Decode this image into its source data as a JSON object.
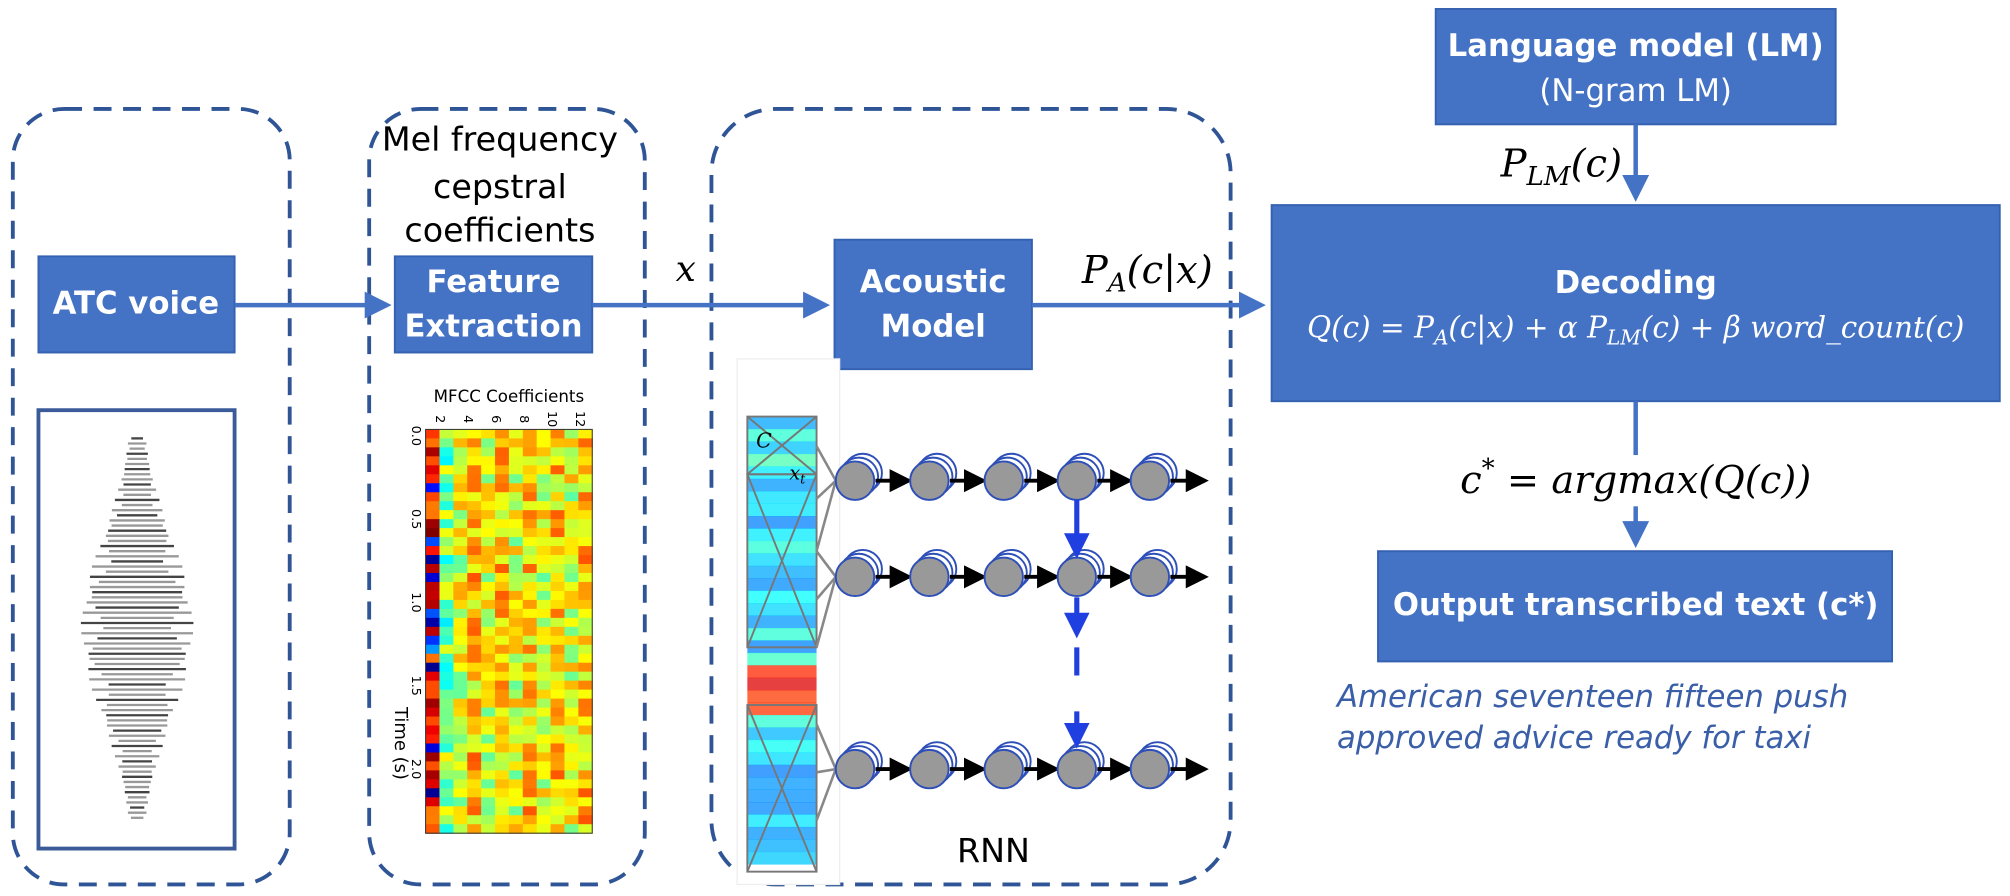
{
  "voice": {
    "label": "ATC voice"
  },
  "feature": {
    "caption": [
      "Mel frequency",
      "cepstral",
      "coefficients"
    ],
    "label": [
      "Feature",
      "Extraction"
    ],
    "plot": {
      "title": "MFCC Coefficients",
      "y_label": "Time (s)",
      "x_ticks": [
        "2",
        "4",
        "6",
        "8",
        "10",
        "12"
      ],
      "y_ticks": [
        "0.0",
        "0.5",
        "1.0",
        "1.5",
        "2.0"
      ]
    }
  },
  "x_label": "x",
  "acoustic": {
    "label": [
      "Acoustic",
      "Model"
    ],
    "output": [
      {
        "t": "P"
      },
      {
        "s": "A"
      },
      {
        "t": "(c|x)"
      }
    ],
    "rnn_label": "RNN",
    "rnn_context": "C",
    "rnn_input": [
      {
        "t": "x"
      },
      {
        "s": "t"
      }
    ]
  },
  "lm": {
    "title": "Language model (LM)",
    "subtitle": "(N-gram LM)",
    "output": [
      {
        "t": "P"
      },
      {
        "s": "LM"
      },
      {
        "t": "(c)"
      }
    ]
  },
  "decoding": {
    "title": "Decoding",
    "formula": [
      {
        "t": "Q(c) = P"
      },
      {
        "s": "A"
      },
      {
        "t": "(c|x) + α P"
      },
      {
        "s": "LM"
      },
      {
        "t": "(c) + β word_count(c)"
      }
    ]
  },
  "argmax": [
    {
      "t": "c"
    },
    {
      "sup": "*"
    },
    {
      "t": " = argmax(Q(c))"
    }
  ],
  "output": {
    "label": "Output transcribed text (c*)",
    "example": [
      "American seventeen fifteen push",
      "approved advice ready for taxi"
    ]
  }
}
